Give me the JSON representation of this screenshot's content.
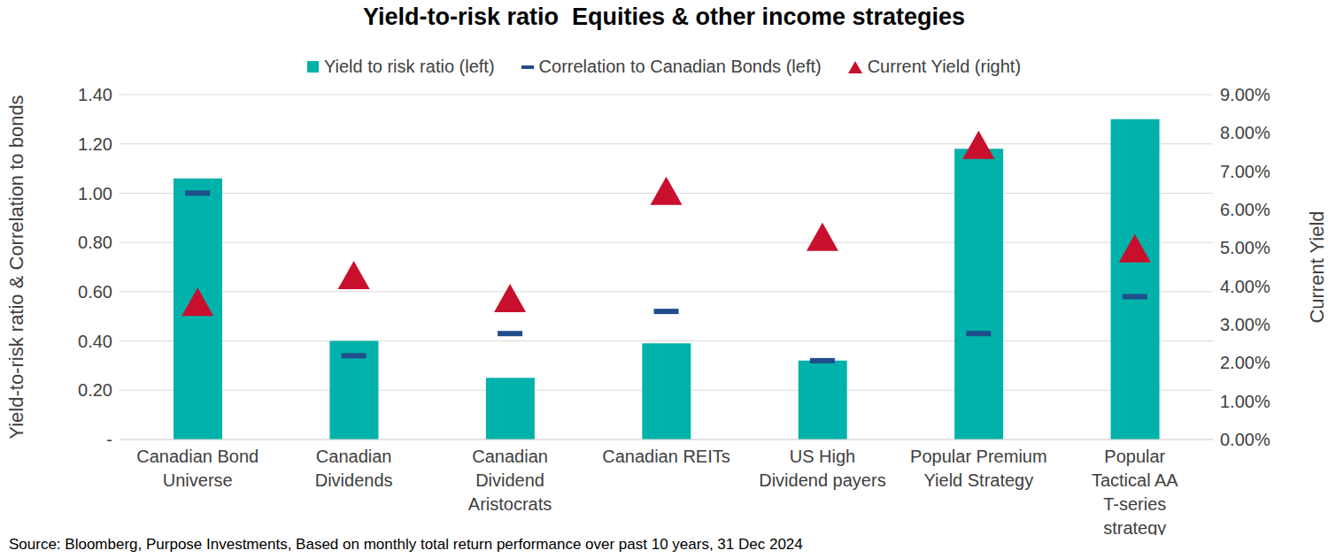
{
  "chart_data": {
    "type": "bar",
    "title": "Yield-to-risk ratio  Equities & other income strategies",
    "source": "Source: Bloomberg, Purpose Investments, Based on monthly total return performance over past 10 years, 31 Dec 2024",
    "ylabel": "Yield-to-risk ratio & Correlation to bonds",
    "y2label": "Current Yield",
    "categories": [
      "Canadian Bond Universe",
      "Canadian Dividends",
      "Canadian Dividend Aristocrats",
      "Canadian REITs",
      "US High Dividend payers",
      "Popular Premium Yield Strategy",
      "Popular Tactical AA T-series strategy"
    ],
    "series": [
      {
        "name": "Yield to risk ratio (left)",
        "type": "bar",
        "color": "#00b2a9",
        "values": [
          1.06,
          0.4,
          0.25,
          0.39,
          0.32,
          1.18,
          1.3
        ]
      },
      {
        "name": "Correlation to Canadian Bonds (left)",
        "type": "scatter",
        "marker": "dash",
        "color": "#1f4e8c",
        "values": [
          1.0,
          0.34,
          0.43,
          0.52,
          0.32,
          0.43,
          0.58
        ]
      },
      {
        "name": "Current Yield (right)",
        "type": "scatter",
        "marker": "triangle",
        "color": "#c8102e",
        "axis": "y2",
        "values": [
          3.5,
          4.2,
          3.6,
          6.4,
          5.2,
          7.6,
          4.9
        ]
      }
    ],
    "ylim": [
      0,
      1.4
    ],
    "yticks": [
      {
        "value": 0,
        "label": "-"
      },
      {
        "value": 0.2,
        "label": "0.20"
      },
      {
        "value": 0.4,
        "label": "0.40"
      },
      {
        "value": 0.6,
        "label": "0.60"
      },
      {
        "value": 0.8,
        "label": "0.80"
      },
      {
        "value": 1.0,
        "label": "1.00"
      },
      {
        "value": 1.2,
        "label": "1.20"
      },
      {
        "value": 1.4,
        "label": "1.40"
      }
    ],
    "y2lim": [
      0,
      9
    ],
    "y2ticks": [
      {
        "value": 0,
        "label": "0.00%"
      },
      {
        "value": 1,
        "label": "1.00%"
      },
      {
        "value": 2,
        "label": "2.00%"
      },
      {
        "value": 3,
        "label": "3.00%"
      },
      {
        "value": 4,
        "label": "4.00%"
      },
      {
        "value": 5,
        "label": "5.00%"
      },
      {
        "value": 6,
        "label": "6.00%"
      },
      {
        "value": 7,
        "label": "7.00%"
      },
      {
        "value": 8,
        "label": "8.00%"
      },
      {
        "value": 9,
        "label": "9.00%"
      }
    ],
    "grid": true,
    "legend": "top"
  }
}
